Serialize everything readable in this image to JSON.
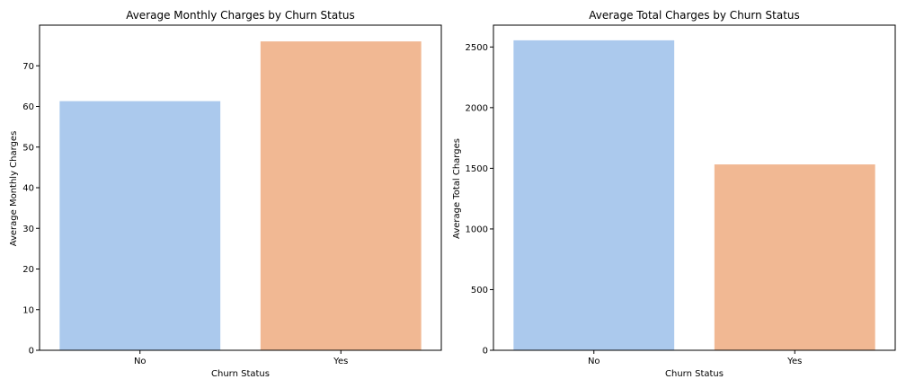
{
  "chart_data": [
    {
      "type": "bar",
      "title": "Average Monthly Charges by Churn Status",
      "xlabel": "Churn Status",
      "ylabel": "Average Monthly Charges",
      "categories": [
        "No",
        "Yes"
      ],
      "values": [
        61.3,
        76.0
      ],
      "colors": [
        "#abc9ed",
        "#f1b893"
      ],
      "ylim": [
        0,
        80
      ],
      "yticks": [
        0,
        10,
        20,
        30,
        40,
        50,
        60,
        70
      ],
      "grid": false,
      "legend": "none"
    },
    {
      "type": "bar",
      "title": "Average Total Charges by Churn Status",
      "xlabel": "Churn Status",
      "ylabel": "Average Total Charges",
      "categories": [
        "No",
        "Yes"
      ],
      "values": [
        2555,
        1532
      ],
      "colors": [
        "#abc9ed",
        "#f1b893"
      ],
      "ylim": [
        0,
        2680
      ],
      "yticks": [
        0,
        500,
        1000,
        1500,
        2000,
        2500
      ],
      "grid": false,
      "legend": "none"
    }
  ]
}
